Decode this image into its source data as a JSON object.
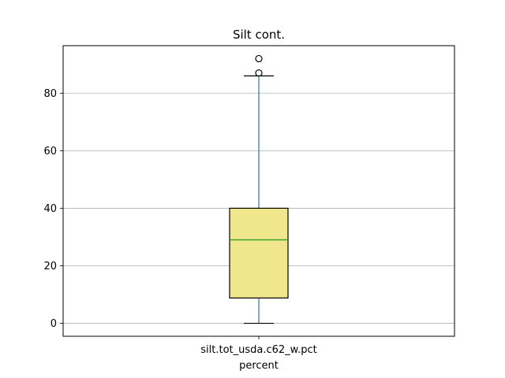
{
  "chart_data": {
    "type": "box",
    "title": "Silt cont.",
    "xlabel": "percent",
    "ylabel": "",
    "categories": [
      "silt.tot_usda.c62_w.pct"
    ],
    "ylim": [
      -4.5,
      96.5
    ],
    "yticks": [
      0,
      20,
      40,
      60,
      80
    ],
    "grid": "y",
    "box": {
      "whisker_low": 0,
      "q1": 8.8,
      "median": 29,
      "q3": 40,
      "whisker_high": 86,
      "outliers": [
        87,
        92
      ]
    },
    "colors": {
      "box_fill": "#f0e68c",
      "box_edge": "#000000",
      "whisker": "#1f77b4",
      "median": "#2ca02c",
      "grid": "#b0b0b0"
    }
  }
}
